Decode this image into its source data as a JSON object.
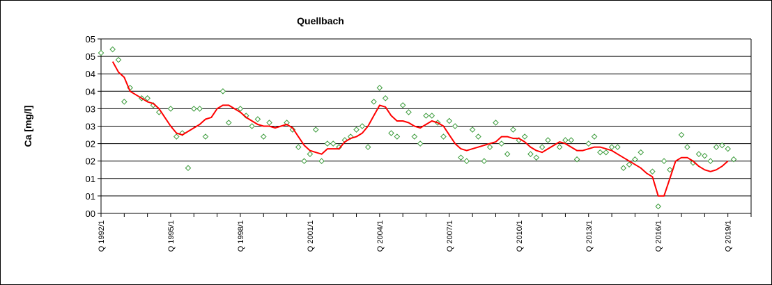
{
  "chart_data": {
    "type": "scatter",
    "title": "Quellbach",
    "xlabel": "",
    "ylabel": "Ca [mg/l]",
    "grid": "horizontal",
    "legend": "none",
    "y_tick_labels": [
      "00",
      "01",
      "01",
      "02",
      "02",
      "03",
      "03",
      "04",
      "04",
      "05",
      "05"
    ],
    "ylim": [
      0,
      10
    ],
    "x_axis": {
      "unit": "quarter",
      "start_year": 1992,
      "end_year": 2020,
      "tick_labels": [
        "Q 1992/1",
        "Q 1995/1",
        "Q 1998/1",
        "Q 2001/1",
        "Q 2004/1",
        "Q 2007/1",
        "Q 2010/1",
        "Q 2013/1",
        "Q 2016/1",
        "Q 2019/1"
      ],
      "tick_quarters": [
        0,
        12,
        24,
        36,
        48,
        60,
        72,
        84,
        96,
        108
      ]
    },
    "series": [
      {
        "kind": "scatter",
        "marker": "diamond",
        "color": "#3a9a3a",
        "points": [
          {
            "q": 0,
            "y": 9.2
          },
          {
            "q": 2,
            "y": 9.4
          },
          {
            "q": 3,
            "y": 8.8
          },
          {
            "q": 4,
            "y": 6.4
          },
          {
            "q": 5,
            "y": 7.2
          },
          {
            "q": 7,
            "y": 6.6
          },
          {
            "q": 8,
            "y": 6.6
          },
          {
            "q": 9,
            "y": 6.2
          },
          {
            "q": 10,
            "y": 5.8
          },
          {
            "q": 12,
            "y": 6.0
          },
          {
            "q": 13,
            "y": 4.4
          },
          {
            "q": 14,
            "y": 4.6
          },
          {
            "q": 15,
            "y": 2.6
          },
          {
            "q": 16,
            "y": 6.0
          },
          {
            "q": 17,
            "y": 6.0
          },
          {
            "q": 18,
            "y": 4.4
          },
          {
            "q": 21,
            "y": 7.0
          },
          {
            "q": 22,
            "y": 5.2
          },
          {
            "q": 24,
            "y": 6.0
          },
          {
            "q": 25,
            "y": 5.6
          },
          {
            "q": 26,
            "y": 5.0
          },
          {
            "q": 27,
            "y": 5.4
          },
          {
            "q": 28,
            "y": 4.4
          },
          {
            "q": 29,
            "y": 5.2
          },
          {
            "q": 32,
            "y": 5.2
          },
          {
            "q": 33,
            "y": 4.8
          },
          {
            "q": 34,
            "y": 3.8
          },
          {
            "q": 35,
            "y": 3.0
          },
          {
            "q": 36,
            "y": 3.4
          },
          {
            "q": 37,
            "y": 4.8
          },
          {
            "q": 38,
            "y": 3.0
          },
          {
            "q": 39,
            "y": 4.0
          },
          {
            "q": 40,
            "y": 4.0
          },
          {
            "q": 41,
            "y": 3.8
          },
          {
            "q": 42,
            "y": 4.2
          },
          {
            "q": 43,
            "y": 4.4
          },
          {
            "q": 44,
            "y": 4.8
          },
          {
            "q": 45,
            "y": 5.0
          },
          {
            "q": 46,
            "y": 3.8
          },
          {
            "q": 47,
            "y": 6.4
          },
          {
            "q": 48,
            "y": 7.2
          },
          {
            "q": 49,
            "y": 6.6
          },
          {
            "q": 50,
            "y": 4.6
          },
          {
            "q": 51,
            "y": 4.4
          },
          {
            "q": 52,
            "y": 6.2
          },
          {
            "q": 53,
            "y": 5.8
          },
          {
            "q": 54,
            "y": 4.4
          },
          {
            "q": 55,
            "y": 4.0
          },
          {
            "q": 56,
            "y": 5.6
          },
          {
            "q": 57,
            "y": 5.6
          },
          {
            "q": 58,
            "y": 5.2
          },
          {
            "q": 59,
            "y": 4.4
          },
          {
            "q": 60,
            "y": 5.3
          },
          {
            "q": 61,
            "y": 5.0
          },
          {
            "q": 62,
            "y": 3.2
          },
          {
            "q": 63,
            "y": 3.0
          },
          {
            "q": 64,
            "y": 4.8
          },
          {
            "q": 65,
            "y": 4.4
          },
          {
            "q": 66,
            "y": 3.0
          },
          {
            "q": 67,
            "y": 3.8
          },
          {
            "q": 68,
            "y": 5.2
          },
          {
            "q": 69,
            "y": 4.0
          },
          {
            "q": 70,
            "y": 3.4
          },
          {
            "q": 71,
            "y": 4.8
          },
          {
            "q": 72,
            "y": 4.2
          },
          {
            "q": 73,
            "y": 4.4
          },
          {
            "q": 74,
            "y": 3.4
          },
          {
            "q": 75,
            "y": 3.2
          },
          {
            "q": 76,
            "y": 3.8
          },
          {
            "q": 77,
            "y": 4.2
          },
          {
            "q": 79,
            "y": 3.8
          },
          {
            "q": 80,
            "y": 4.2
          },
          {
            "q": 81,
            "y": 4.2
          },
          {
            "q": 82,
            "y": 3.1
          },
          {
            "q": 84,
            "y": 4.0
          },
          {
            "q": 85,
            "y": 4.4
          },
          {
            "q": 86,
            "y": 3.5
          },
          {
            "q": 87,
            "y": 3.5
          },
          {
            "q": 88,
            "y": 3.8
          },
          {
            "q": 89,
            "y": 3.8
          },
          {
            "q": 90,
            "y": 2.6
          },
          {
            "q": 91,
            "y": 2.8
          },
          {
            "q": 92,
            "y": 3.1
          },
          {
            "q": 93,
            "y": 3.5
          },
          {
            "q": 95,
            "y": 2.4
          },
          {
            "q": 96,
            "y": 0.4
          },
          {
            "q": 97,
            "y": 3.0
          },
          {
            "q": 98,
            "y": 2.5
          },
          {
            "q": 100,
            "y": 4.5
          },
          {
            "q": 101,
            "y": 3.8
          },
          {
            "q": 102,
            "y": 2.9
          },
          {
            "q": 103,
            "y": 3.4
          },
          {
            "q": 104,
            "y": 3.3
          },
          {
            "q": 105,
            "y": 3.0
          },
          {
            "q": 106,
            "y": 3.8
          },
          {
            "q": 107,
            "y": 3.9
          },
          {
            "q": 108,
            "y": 3.7
          },
          {
            "q": 109,
            "y": 3.1
          }
        ]
      },
      {
        "kind": "line",
        "color": "#ff0000",
        "points": [
          {
            "q": 2,
            "y": 8.7
          },
          {
            "q": 3,
            "y": 8.1
          },
          {
            "q": 4,
            "y": 7.8
          },
          {
            "q": 5,
            "y": 7.0
          },
          {
            "q": 6,
            "y": 6.8
          },
          {
            "q": 7,
            "y": 6.6
          },
          {
            "q": 8,
            "y": 6.4
          },
          {
            "q": 9,
            "y": 6.3
          },
          {
            "q": 10,
            "y": 6.0
          },
          {
            "q": 11,
            "y": 5.5
          },
          {
            "q": 12,
            "y": 5.0
          },
          {
            "q": 13,
            "y": 4.6
          },
          {
            "q": 14,
            "y": 4.5
          },
          {
            "q": 15,
            "y": 4.7
          },
          {
            "q": 16,
            "y": 4.9
          },
          {
            "q": 17,
            "y": 5.1
          },
          {
            "q": 18,
            "y": 5.4
          },
          {
            "q": 19,
            "y": 5.5
          },
          {
            "q": 20,
            "y": 6.0
          },
          {
            "q": 21,
            "y": 6.2
          },
          {
            "q": 22,
            "y": 6.2
          },
          {
            "q": 23,
            "y": 6.0
          },
          {
            "q": 24,
            "y": 5.8
          },
          {
            "q": 25,
            "y": 5.5
          },
          {
            "q": 26,
            "y": 5.3
          },
          {
            "q": 27,
            "y": 5.1
          },
          {
            "q": 28,
            "y": 5.0
          },
          {
            "q": 29,
            "y": 5.0
          },
          {
            "q": 30,
            "y": 4.9
          },
          {
            "q": 31,
            "y": 5.0
          },
          {
            "q": 32,
            "y": 5.1
          },
          {
            "q": 33,
            "y": 4.9
          },
          {
            "q": 34,
            "y": 4.4
          },
          {
            "q": 35,
            "y": 3.9
          },
          {
            "q": 36,
            "y": 3.6
          },
          {
            "q": 37,
            "y": 3.5
          },
          {
            "q": 38,
            "y": 3.4
          },
          {
            "q": 39,
            "y": 3.7
          },
          {
            "q": 40,
            "y": 3.7
          },
          {
            "q": 41,
            "y": 3.7
          },
          {
            "q": 42,
            "y": 4.1
          },
          {
            "q": 43,
            "y": 4.3
          },
          {
            "q": 44,
            "y": 4.4
          },
          {
            "q": 45,
            "y": 4.6
          },
          {
            "q": 46,
            "y": 5.0
          },
          {
            "q": 47,
            "y": 5.6
          },
          {
            "q": 48,
            "y": 6.2
          },
          {
            "q": 49,
            "y": 6.1
          },
          {
            "q": 50,
            "y": 5.6
          },
          {
            "q": 51,
            "y": 5.3
          },
          {
            "q": 52,
            "y": 5.3
          },
          {
            "q": 53,
            "y": 5.2
          },
          {
            "q": 54,
            "y": 5.0
          },
          {
            "q": 55,
            "y": 4.9
          },
          {
            "q": 56,
            "y": 5.1
          },
          {
            "q": 57,
            "y": 5.3
          },
          {
            "q": 58,
            "y": 5.2
          },
          {
            "q": 59,
            "y": 5.0
          },
          {
            "q": 60,
            "y": 4.5
          },
          {
            "q": 61,
            "y": 4.0
          },
          {
            "q": 62,
            "y": 3.7
          },
          {
            "q": 63,
            "y": 3.6
          },
          {
            "q": 64,
            "y": 3.7
          },
          {
            "q": 65,
            "y": 3.8
          },
          {
            "q": 66,
            "y": 3.9
          },
          {
            "q": 67,
            "y": 4.0
          },
          {
            "q": 68,
            "y": 4.1
          },
          {
            "q": 69,
            "y": 4.4
          },
          {
            "q": 70,
            "y": 4.4
          },
          {
            "q": 71,
            "y": 4.3
          },
          {
            "q": 72,
            "y": 4.3
          },
          {
            "q": 73,
            "y": 4.1
          },
          {
            "q": 74,
            "y": 3.8
          },
          {
            "q": 75,
            "y": 3.6
          },
          {
            "q": 76,
            "y": 3.5
          },
          {
            "q": 77,
            "y": 3.7
          },
          {
            "q": 78,
            "y": 3.9
          },
          {
            "q": 79,
            "y": 4.1
          },
          {
            "q": 80,
            "y": 4.0
          },
          {
            "q": 81,
            "y": 3.8
          },
          {
            "q": 82,
            "y": 3.6
          },
          {
            "q": 83,
            "y": 3.6
          },
          {
            "q": 84,
            "y": 3.7
          },
          {
            "q": 85,
            "y": 3.8
          },
          {
            "q": 86,
            "y": 3.8
          },
          {
            "q": 87,
            "y": 3.7
          },
          {
            "q": 88,
            "y": 3.6
          },
          {
            "q": 89,
            "y": 3.4
          },
          {
            "q": 90,
            "y": 3.2
          },
          {
            "q": 91,
            "y": 3.0
          },
          {
            "q": 92,
            "y": 2.8
          },
          {
            "q": 93,
            "y": 2.6
          },
          {
            "q": 94,
            "y": 2.3
          },
          {
            "q": 95,
            "y": 2.1
          },
          {
            "q": 96,
            "y": 1.0
          },
          {
            "q": 97,
            "y": 1.0
          },
          {
            "q": 98,
            "y": 2.0
          },
          {
            "q": 99,
            "y": 3.0
          },
          {
            "q": 100,
            "y": 3.2
          },
          {
            "q": 101,
            "y": 3.2
          },
          {
            "q": 102,
            "y": 3.0
          },
          {
            "q": 103,
            "y": 2.7
          },
          {
            "q": 104,
            "y": 2.5
          },
          {
            "q": 105,
            "y": 2.4
          },
          {
            "q": 106,
            "y": 2.5
          },
          {
            "q": 107,
            "y": 2.7
          },
          {
            "q": 108,
            "y": 3.0
          }
        ]
      }
    ]
  }
}
